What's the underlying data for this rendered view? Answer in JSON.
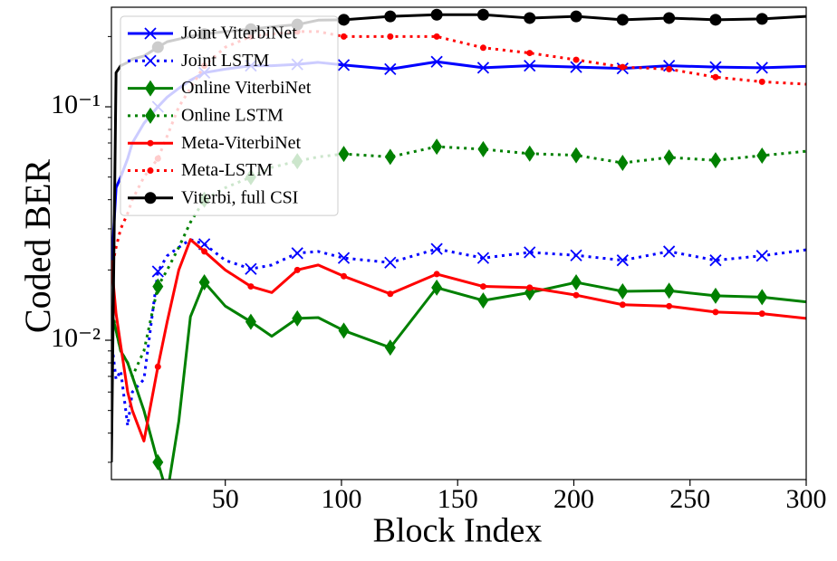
{
  "chart_data": {
    "type": "line",
    "x_label": "Block Index",
    "y_label": "Coded BER",
    "x": [
      1,
      3,
      5,
      8,
      10,
      15,
      21,
      25,
      30,
      35,
      41,
      50,
      61,
      70,
      81,
      90,
      101,
      121,
      141,
      161,
      181,
      201,
      221,
      241,
      261,
      281,
      300
    ],
    "xlim": [
      1,
      300
    ],
    "xticks": [
      50,
      100,
      150,
      200,
      250,
      300
    ],
    "ylim": [
      0.00253,
      0.267
    ],
    "yscale": "log",
    "yticks": [
      {
        "value": 0.01,
        "label": "10⁻²"
      },
      {
        "value": 0.1,
        "label": "10⁻¹"
      }
    ],
    "yminor": [
      0.003,
      0.004,
      0.005,
      0.006,
      0.007,
      0.008,
      0.009,
      0.02,
      0.03,
      0.04,
      0.05,
      0.06,
      0.07,
      0.08,
      0.09,
      0.2
    ],
    "legend": "upper left",
    "series": [
      {
        "name": "Joint ViterbiNet",
        "color": "#0000ff",
        "style": "solid",
        "marker": "x",
        "values": [
          0.02,
          0.045,
          0.05,
          0.06,
          0.07,
          0.085,
          0.1,
          0.11,
          0.12,
          0.13,
          0.14,
          0.145,
          0.15,
          0.15,
          0.152,
          0.155,
          0.151,
          0.145,
          0.156,
          0.147,
          0.15,
          0.148,
          0.146,
          0.15,
          0.148,
          0.147,
          0.149
        ]
      },
      {
        "name": "Joint LSTM",
        "color": "#0000ff",
        "style": "dotted",
        "marker": "x",
        "values": [
          0.01,
          0.0068,
          0.0074,
          0.0043,
          0.006,
          0.0068,
          0.0197,
          0.023,
          0.025,
          0.027,
          0.0258,
          0.022,
          0.0202,
          0.021,
          0.0236,
          0.024,
          0.0225,
          0.0215,
          0.0246,
          0.0225,
          0.0238,
          0.0231,
          0.022,
          0.024,
          0.022,
          0.023,
          0.0244
        ]
      },
      {
        "name": "Online ViterbiNet",
        "color": "#008000",
        "style": "solid",
        "marker": "diamond",
        "values": [
          0.0132,
          0.011,
          0.009,
          0.008,
          0.007,
          0.005,
          0.003,
          0.0022,
          0.0045,
          0.0126,
          0.0177,
          0.014,
          0.012,
          0.0104,
          0.0124,
          0.0125,
          0.011,
          0.0093,
          0.0168,
          0.0148,
          0.016,
          0.0177,
          0.0162,
          0.0163,
          0.0155,
          0.0153,
          0.0146
        ]
      },
      {
        "name": "Online LSTM",
        "color": "#008000",
        "style": "dotted",
        "marker": "diamond",
        "values": [
          0.014,
          0.011,
          0.009,
          0.008,
          0.007,
          0.009,
          0.017,
          0.02,
          0.025,
          0.032,
          0.04,
          0.045,
          0.05,
          0.055,
          0.0585,
          0.061,
          0.0628,
          0.061,
          0.0675,
          0.0658,
          0.063,
          0.062,
          0.0575,
          0.0607,
          0.059,
          0.0618,
          0.0645
        ]
      },
      {
        "name": "Meta-ViterbiNet",
        "color": "#ff0000",
        "style": "solid",
        "marker": "dot",
        "values": [
          0.0215,
          0.013,
          0.0095,
          0.006,
          0.005,
          0.0037,
          0.0077,
          0.012,
          0.02,
          0.027,
          0.024,
          0.02,
          0.017,
          0.016,
          0.02,
          0.021,
          0.0188,
          0.0158,
          0.0192,
          0.017,
          0.0168,
          0.0156,
          0.0142,
          0.014,
          0.0132,
          0.013,
          0.0124
        ]
      },
      {
        "name": "Meta-LSTM",
        "color": "#ff0000",
        "style": "dotted",
        "marker": "dot",
        "values": [
          0.02,
          0.025,
          0.03,
          0.035,
          0.04,
          0.05,
          0.06,
          0.075,
          0.1,
          0.12,
          0.15,
          0.18,
          0.2,
          0.205,
          0.21,
          0.21,
          0.2,
          0.2,
          0.2,
          0.179,
          0.17,
          0.159,
          0.148,
          0.145,
          0.134,
          0.128,
          0.125
        ]
      },
      {
        "name": "Viterbi, full CSI",
        "color": "#000000",
        "style": "solid",
        "marker": "circle",
        "values": [
          0.003,
          0.14,
          0.15,
          0.155,
          0.16,
          0.165,
          0.18,
          0.19,
          0.195,
          0.2,
          0.205,
          0.21,
          0.215,
          0.22,
          0.225,
          0.235,
          0.236,
          0.244,
          0.248,
          0.248,
          0.24,
          0.244,
          0.236,
          0.24,
          0.236,
          0.238,
          0.244
        ]
      }
    ]
  }
}
